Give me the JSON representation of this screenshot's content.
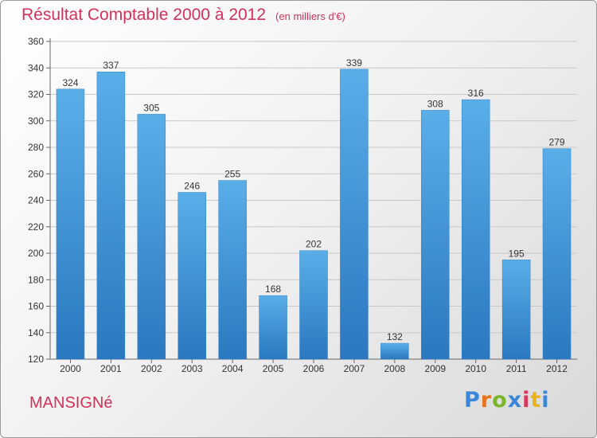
{
  "header": {
    "title": "Résultat Comptable 2000 à 2012",
    "unit": "(en milliers d'€)"
  },
  "commune": "MANSIGNé",
  "logo": {
    "text": "Proxiti",
    "colors": [
      "#3a86d8",
      "#e8731e",
      "#7ab52a",
      "#3a86d8",
      "#d8365a",
      "#e8b31e",
      "#3a86d8"
    ]
  },
  "colors": {
    "title": "#d3315a",
    "bar": "#4a9fe0",
    "bar_dark": "#2a78bf"
  },
  "chart_data": {
    "type": "bar",
    "title": "Résultat Comptable 2000 à 2012",
    "xlabel": "",
    "ylabel": "",
    "categories": [
      "2000",
      "2001",
      "2002",
      "2003",
      "2004",
      "2005",
      "2006",
      "2007",
      "2008",
      "2009",
      "2010",
      "2011",
      "2012"
    ],
    "values": [
      324,
      337,
      305,
      246,
      255,
      168,
      202,
      339,
      132,
      308,
      316,
      195,
      279
    ],
    "ylim": [
      120,
      360
    ],
    "yticks": [
      120,
      140,
      160,
      180,
      200,
      220,
      240,
      260,
      280,
      300,
      320,
      340,
      360
    ],
    "grid": true,
    "data_labels": true
  }
}
